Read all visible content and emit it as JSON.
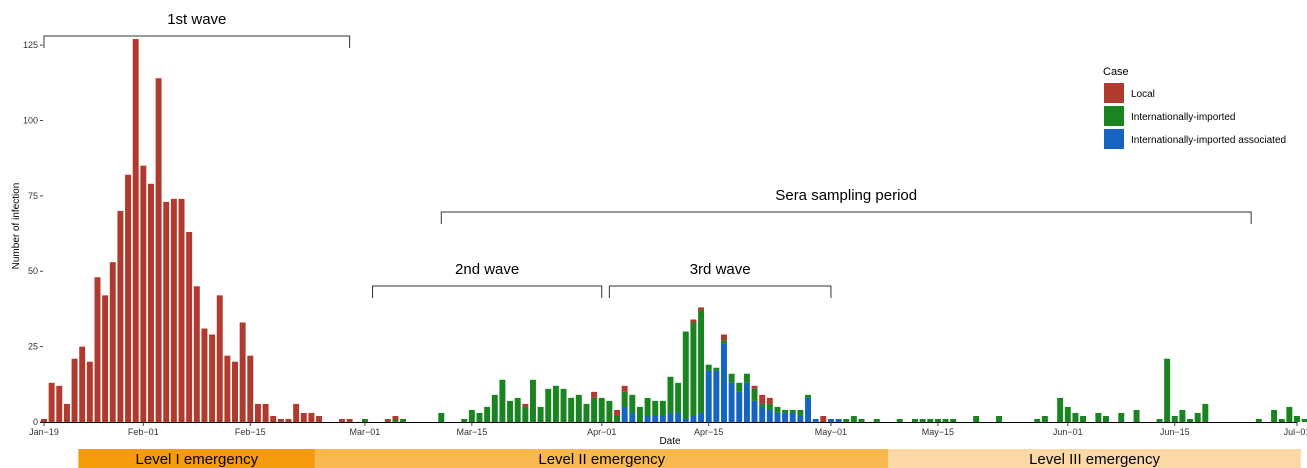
{
  "chart_data": {
    "type": "bar",
    "stacked": true,
    "xlabel": "Date",
    "ylabel": "Number of infection",
    "ylim": [
      0,
      130
    ],
    "yticks": [
      0,
      25,
      50,
      75,
      100,
      125
    ],
    "x_tick_labels": [
      "Jan−19",
      "Feb−01",
      "Feb−15",
      "Mar−01",
      "Mar−15",
      "Apr−01",
      "Apr−15",
      "May−01",
      "May−15",
      "Jun−01",
      "Jun−15",
      "Jul−01"
    ],
    "x_tick_dates": [
      "2020-01-19",
      "2020-02-01",
      "2020-02-15",
      "2020-03-01",
      "2020-03-15",
      "2020-04-01",
      "2020-04-15",
      "2020-05-01",
      "2020-05-15",
      "2020-06-01",
      "2020-06-15",
      "2020-07-01"
    ],
    "x_range": [
      "2020-01-19",
      "2020-07-01"
    ],
    "grid": false,
    "legend": {
      "title": "Case",
      "position": "right"
    },
    "series": [
      {
        "name": "Local",
        "color": "#b03a2e",
        "data": [
          [
            "2020-01-19",
            1
          ],
          [
            "2020-01-20",
            13
          ],
          [
            "2020-01-21",
            12
          ],
          [
            "2020-01-22",
            6
          ],
          [
            "2020-01-23",
            21
          ],
          [
            "2020-01-24",
            25
          ],
          [
            "2020-01-25",
            20
          ],
          [
            "2020-01-26",
            48
          ],
          [
            "2020-01-27",
            42
          ],
          [
            "2020-01-28",
            53
          ],
          [
            "2020-01-29",
            70
          ],
          [
            "2020-01-30",
            82
          ],
          [
            "2020-01-31",
            127
          ],
          [
            "2020-02-01",
            85
          ],
          [
            "2020-02-02",
            79
          ],
          [
            "2020-02-03",
            114
          ],
          [
            "2020-02-04",
            73
          ],
          [
            "2020-02-05",
            74
          ],
          [
            "2020-02-06",
            74
          ],
          [
            "2020-02-07",
            63
          ],
          [
            "2020-02-08",
            45
          ],
          [
            "2020-02-09",
            31
          ],
          [
            "2020-02-10",
            29
          ],
          [
            "2020-02-11",
            42
          ],
          [
            "2020-02-12",
            22
          ],
          [
            "2020-02-13",
            20
          ],
          [
            "2020-02-14",
            33
          ],
          [
            "2020-02-15",
            22
          ],
          [
            "2020-02-16",
            6
          ],
          [
            "2020-02-17",
            6
          ],
          [
            "2020-02-18",
            2
          ],
          [
            "2020-02-19",
            1
          ],
          [
            "2020-02-20",
            1
          ],
          [
            "2020-02-21",
            6
          ],
          [
            "2020-02-22",
            3
          ],
          [
            "2020-02-23",
            3
          ],
          [
            "2020-02-24",
            2
          ],
          [
            "2020-02-27",
            1
          ],
          [
            "2020-02-28",
            1
          ],
          [
            "2020-03-04",
            1
          ],
          [
            "2020-03-05",
            1
          ],
          [
            "2020-03-22",
            1
          ],
          [
            "2020-03-31",
            2
          ],
          [
            "2020-04-03",
            2
          ],
          [
            "2020-04-04",
            2
          ],
          [
            "2020-04-13",
            1
          ],
          [
            "2020-04-14",
            1
          ],
          [
            "2020-04-17",
            2
          ],
          [
            "2020-04-21",
            1
          ],
          [
            "2020-04-22",
            3
          ],
          [
            "2020-04-23",
            2
          ],
          [
            "2020-04-30",
            2
          ]
        ]
      },
      {
        "name": "Internationally-imported",
        "color": "#1a8520",
        "data": [
          [
            "2020-03-01",
            1
          ],
          [
            "2020-03-05",
            1
          ],
          [
            "2020-03-06",
            1
          ],
          [
            "2020-03-11",
            3
          ],
          [
            "2020-03-14",
            1
          ],
          [
            "2020-03-15",
            4
          ],
          [
            "2020-03-16",
            3
          ],
          [
            "2020-03-17",
            5
          ],
          [
            "2020-03-18",
            9
          ],
          [
            "2020-03-19",
            14
          ],
          [
            "2020-03-20",
            7
          ],
          [
            "2020-03-21",
            8
          ],
          [
            "2020-03-22",
            5
          ],
          [
            "2020-03-23",
            14
          ],
          [
            "2020-03-24",
            5
          ],
          [
            "2020-03-25",
            11
          ],
          [
            "2020-03-26",
            12
          ],
          [
            "2020-03-27",
            11
          ],
          [
            "2020-03-28",
            8
          ],
          [
            "2020-03-29",
            9
          ],
          [
            "2020-03-30",
            6
          ],
          [
            "2020-03-31",
            8
          ],
          [
            "2020-04-01",
            8
          ],
          [
            "2020-04-02",
            7
          ],
          [
            "2020-04-03",
            2
          ],
          [
            "2020-04-04",
            5
          ],
          [
            "2020-04-05",
            6
          ],
          [
            "2020-04-06",
            5
          ],
          [
            "2020-04-07",
            6
          ],
          [
            "2020-04-08",
            5
          ],
          [
            "2020-04-09",
            5
          ],
          [
            "2020-04-10",
            12
          ],
          [
            "2020-04-11",
            10
          ],
          [
            "2020-04-12",
            29
          ],
          [
            "2020-04-13",
            31
          ],
          [
            "2020-04-14",
            34
          ],
          [
            "2020-04-15",
            2
          ],
          [
            "2020-04-16",
            1
          ],
          [
            "2020-04-17",
            1
          ],
          [
            "2020-04-18",
            3
          ],
          [
            "2020-04-19",
            3
          ],
          [
            "2020-04-20",
            3
          ],
          [
            "2020-04-21",
            4
          ],
          [
            "2020-04-22",
            1
          ],
          [
            "2020-04-23",
            2
          ],
          [
            "2020-04-24",
            2
          ],
          [
            "2020-04-25",
            1
          ],
          [
            "2020-04-26",
            1
          ],
          [
            "2020-04-27",
            2
          ],
          [
            "2020-04-28",
            1
          ],
          [
            "2020-05-03",
            1
          ],
          [
            "2020-05-04",
            2
          ],
          [
            "2020-05-05",
            1
          ],
          [
            "2020-05-07",
            1
          ],
          [
            "2020-05-10",
            1
          ],
          [
            "2020-05-12",
            1
          ],
          [
            "2020-05-13",
            1
          ],
          [
            "2020-05-14",
            1
          ],
          [
            "2020-05-15",
            1
          ],
          [
            "2020-05-16",
            1
          ],
          [
            "2020-05-17",
            1
          ],
          [
            "2020-05-20",
            2
          ],
          [
            "2020-05-23",
            2
          ],
          [
            "2020-05-28",
            1
          ],
          [
            "2020-05-29",
            2
          ],
          [
            "2020-05-31",
            8
          ],
          [
            "2020-06-01",
            5
          ],
          [
            "2020-06-02",
            3
          ],
          [
            "2020-06-03",
            2
          ],
          [
            "2020-06-05",
            3
          ],
          [
            "2020-06-06",
            2
          ],
          [
            "2020-06-08",
            3
          ],
          [
            "2020-06-10",
            4
          ],
          [
            "2020-06-13",
            1
          ],
          [
            "2020-06-14",
            21
          ],
          [
            "2020-06-15",
            2
          ],
          [
            "2020-06-16",
            4
          ],
          [
            "2020-06-17",
            1
          ],
          [
            "2020-06-18",
            3
          ],
          [
            "2020-06-19",
            6
          ],
          [
            "2020-06-26",
            1
          ],
          [
            "2020-06-28",
            4
          ],
          [
            "2020-06-29",
            1
          ],
          [
            "2020-06-30",
            5
          ],
          [
            "2020-07-01",
            2
          ],
          [
            "2020-07-02",
            1
          ]
        ]
      },
      {
        "name": "Internationally-imported associated",
        "color": "#1565c0",
        "data": [
          [
            "2020-04-04",
            5
          ],
          [
            "2020-04-05",
            3
          ],
          [
            "2020-04-07",
            2
          ],
          [
            "2020-04-08",
            2
          ],
          [
            "2020-04-09",
            2
          ],
          [
            "2020-04-10",
            3
          ],
          [
            "2020-04-11",
            3
          ],
          [
            "2020-04-12",
            1
          ],
          [
            "2020-04-13",
            2
          ],
          [
            "2020-04-14",
            3
          ],
          [
            "2020-04-15",
            17
          ],
          [
            "2020-04-16",
            17
          ],
          [
            "2020-04-17",
            26
          ],
          [
            "2020-04-18",
            13
          ],
          [
            "2020-04-19",
            10
          ],
          [
            "2020-04-20",
            13
          ],
          [
            "2020-04-21",
            7
          ],
          [
            "2020-04-22",
            5
          ],
          [
            "2020-04-23",
            4
          ],
          [
            "2020-04-24",
            3
          ],
          [
            "2020-04-25",
            3
          ],
          [
            "2020-04-26",
            3
          ],
          [
            "2020-04-27",
            2
          ],
          [
            "2020-04-28",
            8
          ],
          [
            "2020-04-29",
            1
          ],
          [
            "2020-05-01",
            1
          ],
          [
            "2020-05-02",
            1
          ]
        ]
      }
    ],
    "annotations": {
      "brackets": [
        {
          "label": "1st wave",
          "start": "2020-01-19",
          "end": "2020-02-28"
        },
        {
          "label": "Sera sampling period",
          "start": "2020-03-11",
          "end": "2020-06-25"
        },
        {
          "label": "2nd wave",
          "start": "2020-03-02",
          "end": "2020-04-01"
        },
        {
          "label": "3rd wave",
          "start": "2020-04-02",
          "end": "2020-05-01"
        }
      ],
      "levels": [
        {
          "label": "Level I emergency",
          "color": "#f59b0c",
          "start": "2020-01-24",
          "end": "2020-02-23"
        },
        {
          "label": "Level II emergency",
          "color": "#f9b84f",
          "start": "2020-02-24",
          "end": "2020-05-08"
        },
        {
          "label": "Level III emergency",
          "color": "#fcd9a4",
          "start": "2020-05-09",
          "end": "2020-07-01"
        }
      ]
    }
  }
}
